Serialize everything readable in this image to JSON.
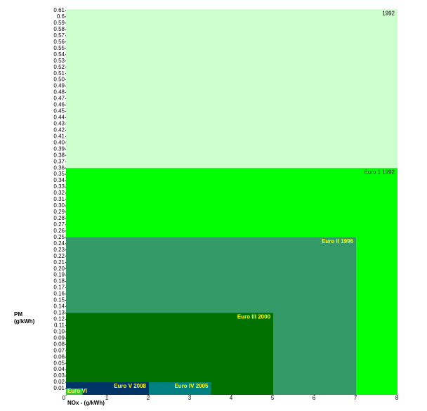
{
  "chart_data": {
    "type": "nested-rect",
    "xlabel": "NOx - (g/kWh)",
    "ylabel": [
      "PM",
      "(g/kWh)"
    ],
    "xlim": [
      0,
      8
    ],
    "xticks": [
      0,
      1,
      2,
      3,
      4,
      5,
      6,
      7,
      8
    ],
    "ylim": [
      0,
      0.62
    ],
    "yticks": [
      0.01,
      0.02,
      0.03,
      0.04,
      0.05,
      0.06,
      0.07,
      0.08,
      0.09,
      {
        "value": 0.1,
        "label": "0.10"
      },
      0.11,
      0.12,
      0.13,
      0.14,
      0.15,
      0.16,
      0.17,
      0.18,
      0.19,
      {
        "value": 0.2,
        "label": "0.20"
      },
      0.21,
      0.22,
      0.23,
      0.24,
      0.25,
      0.26,
      0.27,
      0.28,
      0.29,
      {
        "value": 0.3,
        "label": "0.30"
      },
      0.31,
      0.32,
      0.33,
      0.34,
      0.35,
      0.36,
      0.37,
      0.38,
      0.39,
      {
        "value": 0.4,
        "label": "0.40"
      },
      0.41,
      0.42,
      0.43,
      0.44,
      0.45,
      0.46,
      0.47,
      0.48,
      0.49,
      {
        "value": 0.5,
        "label": "0.50"
      },
      0.51,
      0.52,
      0.53,
      0.54,
      0.55,
      0.56,
      0.57,
      0.58,
      0.59,
      0.6,
      0.61
    ],
    "series": [
      {
        "name": "1992",
        "color": "#ccffcc",
        "label_color": "#000000",
        "nox": 8,
        "pm": 0.612
      },
      {
        "name": "Euro 1  1992",
        "color": "#00ff00",
        "label_color": "#333333",
        "nox": 8,
        "pm": 0.36
      },
      {
        "name": "Euro II  1996",
        "color": "#339966",
        "label_color": "#ffff00",
        "nox": 7,
        "pm": 0.25
      },
      {
        "name": "Euro III  2000",
        "color": "#007000",
        "label_color": "#ffff00",
        "nox": 5,
        "pm": 0.13
      },
      {
        "name": "Euro IV  2005",
        "color": "#008080",
        "label_color": "#ffff00",
        "nox": 3.5,
        "pm": 0.02
      },
      {
        "name": "Euro V  2008",
        "color": "#003366",
        "label_color": "#ffff00",
        "nox": 2,
        "pm": 0.02
      },
      {
        "name": "Euro VI",
        "color": "#33cc33",
        "label_color": "#ffff66",
        "nox": 0.4,
        "pm": 0.01
      }
    ]
  }
}
